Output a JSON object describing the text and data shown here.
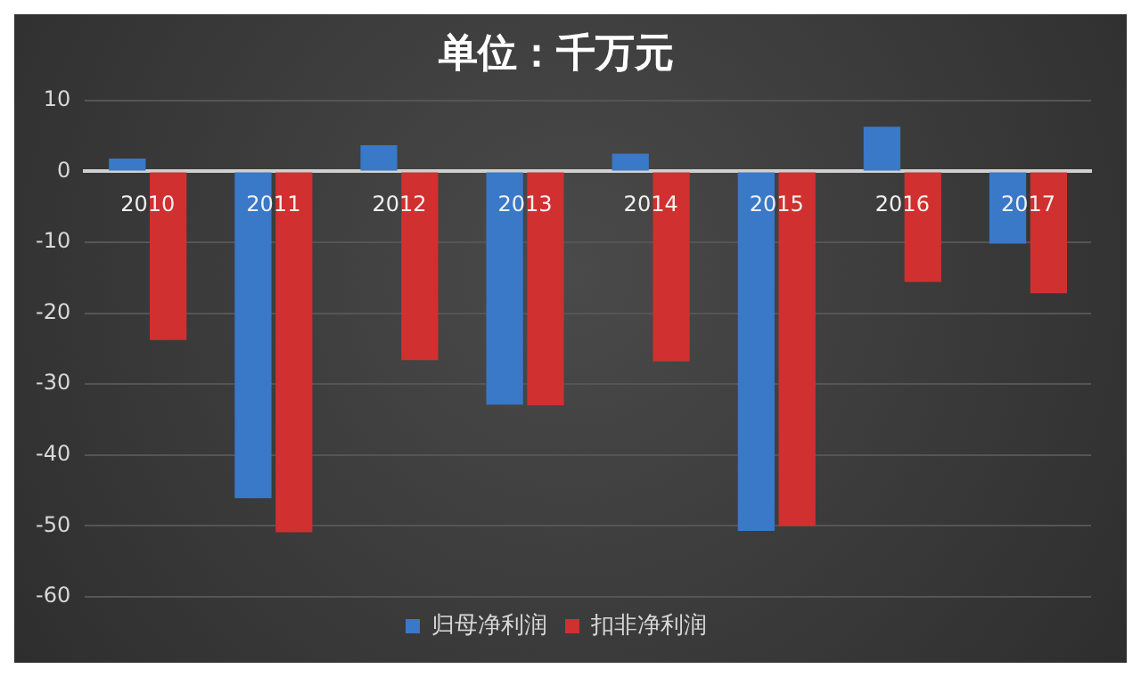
{
  "chart_data": {
    "type": "bar",
    "title": "单位：千万元",
    "categories": [
      "2010",
      "2011",
      "2012",
      "2013",
      "2014",
      "2015",
      "2016",
      "2017"
    ],
    "series": [
      {
        "name": "归母净利润",
        "color": "#3a78c8",
        "values": [
          1.8,
          -46.1,
          3.7,
          -32.9,
          2.5,
          -50.7,
          6.3,
          -10.2
        ]
      },
      {
        "name": "扣非净利润",
        "color": "#d0302f",
        "values": [
          -23.8,
          -50.9,
          -26.6,
          -33,
          -26.8,
          -50,
          -15.6,
          -17.2
        ]
      }
    ],
    "ylim": [
      -60,
      10
    ],
    "yticks": [
      -60,
      -50,
      -40,
      -30,
      -20,
      -10,
      0,
      10
    ],
    "grid": "y",
    "legend": "bottom"
  }
}
